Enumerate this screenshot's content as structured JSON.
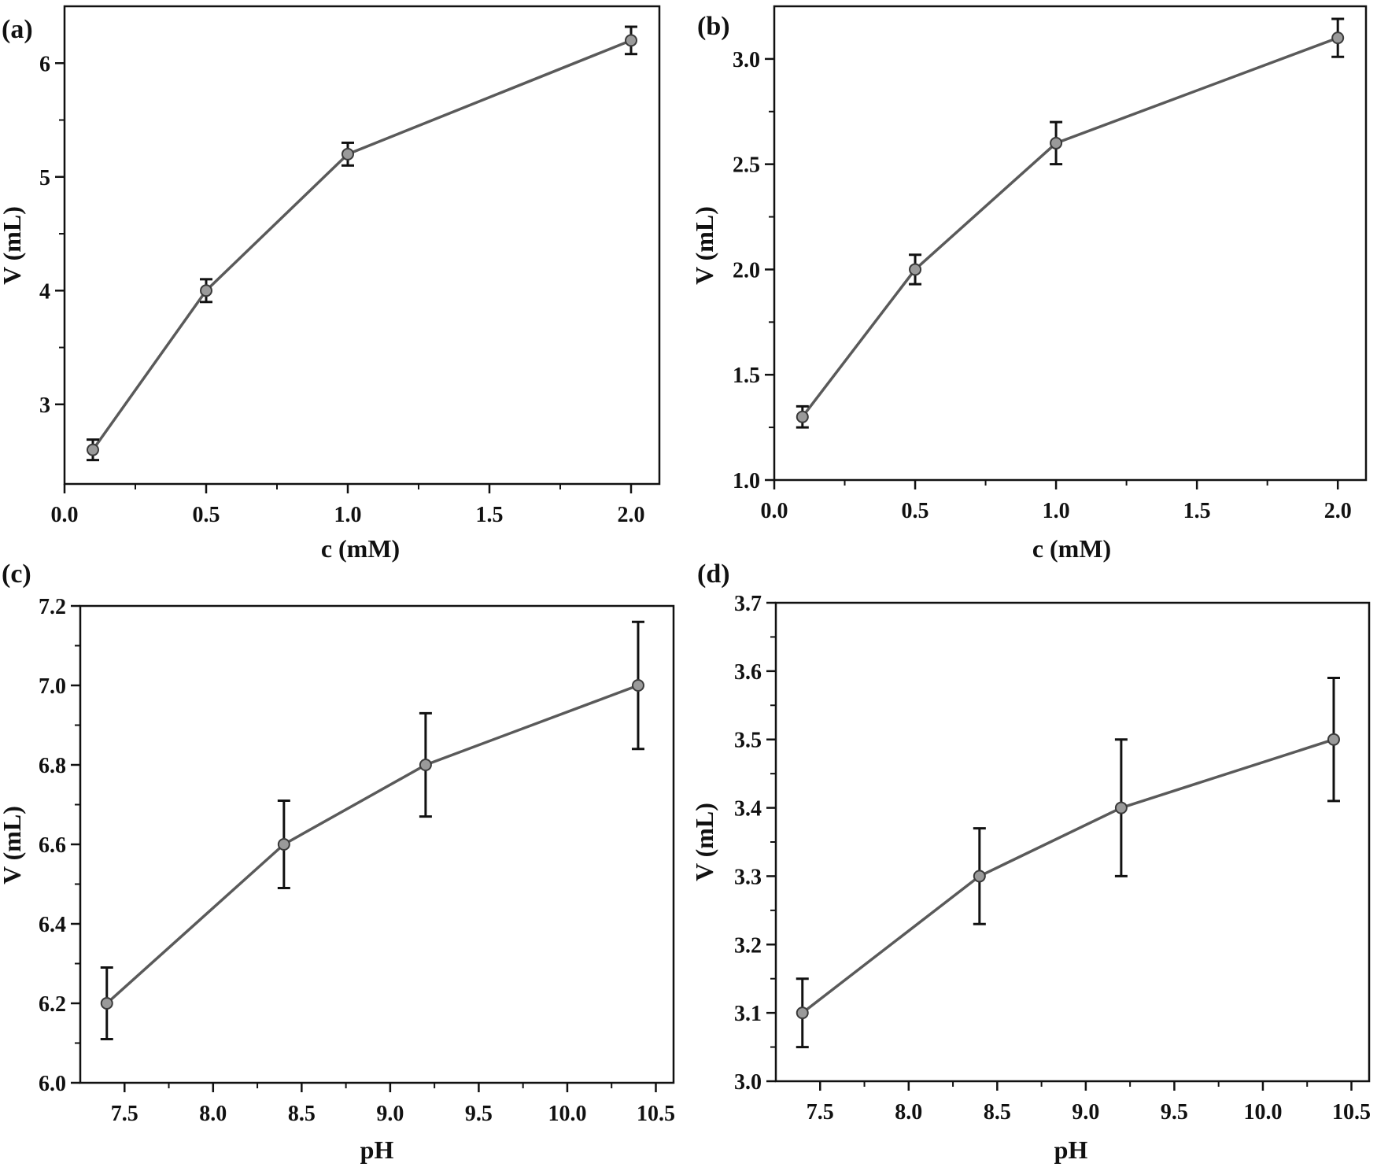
{
  "colors": {
    "line": "#5a5a5a",
    "marker_fill": "#9a9a9a",
    "marker_stroke": "#3a3a3a",
    "error_bar": "#111111",
    "axis": "#111111",
    "text": "#111111"
  },
  "chart_data": [
    {
      "panel_label": "(a)",
      "type": "line",
      "xlabel": "c (mM)",
      "ylabel": "V (mL)",
      "xlim": [
        0.0,
        2.1
      ],
      "ylim": [
        2.3,
        6.5
      ],
      "xticks": [
        0.0,
        0.5,
        1.0,
        1.5,
        2.0
      ],
      "xtick_labels": [
        "0.0",
        "0.5",
        "1.0",
        "1.5",
        "2.0"
      ],
      "yticks": [
        3,
        4,
        5,
        6
      ],
      "ytick_labels": [
        "3",
        "4",
        "5",
        "6"
      ],
      "x": [
        0.1,
        0.5,
        1.0,
        2.0
      ],
      "y": [
        2.6,
        4.0,
        5.2,
        6.2
      ],
      "error": [
        0.09,
        0.1,
        0.1,
        0.12
      ]
    },
    {
      "panel_label": "(b)",
      "type": "line",
      "xlabel": "c (mM)",
      "ylabel": "V (mL)",
      "xlim": [
        0.0,
        2.1
      ],
      "ylim": [
        1.0,
        3.25
      ],
      "xticks": [
        0.0,
        0.5,
        1.0,
        1.5,
        2.0
      ],
      "xtick_labels": [
        "0.0",
        "0.5",
        "1.0",
        "1.5",
        "2.0"
      ],
      "yticks": [
        1.0,
        1.5,
        2.0,
        2.5,
        3.0
      ],
      "ytick_labels": [
        "1.0",
        "1.5",
        "2.0",
        "2.5",
        "3.0"
      ],
      "x": [
        0.1,
        0.5,
        1.0,
        2.0
      ],
      "y": [
        1.3,
        2.0,
        2.6,
        3.1
      ],
      "error": [
        0.05,
        0.07,
        0.1,
        0.09
      ]
    },
    {
      "panel_label": "(c)",
      "type": "line",
      "xlabel": "pH",
      "ylabel": "V (mL)",
      "xlim": [
        7.25,
        10.6
      ],
      "ylim": [
        6.0,
        7.2
      ],
      "xticks": [
        7.5,
        8.0,
        8.5,
        9.0,
        9.5,
        10.0,
        10.5
      ],
      "xtick_labels": [
        "7.5",
        "8.0",
        "8.5",
        "9.0",
        "9.5",
        "10.0",
        "10.5"
      ],
      "yticks": [
        6.0,
        6.2,
        6.4,
        6.6,
        6.8,
        7.0,
        7.2
      ],
      "ytick_labels": [
        "6.0",
        "6.2",
        "6.4",
        "6.6",
        "6.8",
        "7.0",
        "7.2"
      ],
      "x": [
        7.4,
        8.4,
        9.2,
        10.4
      ],
      "y": [
        6.2,
        6.6,
        6.8,
        7.0
      ],
      "error": [
        0.09,
        0.11,
        0.13,
        0.16
      ]
    },
    {
      "panel_label": "(d)",
      "type": "line",
      "xlabel": "pH",
      "ylabel": "V (mL)",
      "xlim": [
        7.25,
        10.6
      ],
      "ylim": [
        3.0,
        3.7
      ],
      "xticks": [
        7.5,
        8.0,
        8.5,
        9.0,
        9.5,
        10.0,
        10.5
      ],
      "xtick_labels": [
        "7.5",
        "8.0",
        "8.5",
        "9.0",
        "9.5",
        "10.0",
        "10.5"
      ],
      "yticks": [
        3.0,
        3.1,
        3.2,
        3.3,
        3.4,
        3.5,
        3.6,
        3.7
      ],
      "ytick_labels": [
        "3.0",
        "3.1",
        "3.2",
        "3.3",
        "3.4",
        "3.5",
        "3.6",
        "3.7"
      ],
      "x": [
        7.4,
        8.4,
        9.2,
        10.4
      ],
      "y": [
        3.1,
        3.3,
        3.4,
        3.5
      ],
      "error": [
        0.05,
        0.07,
        0.1,
        0.09
      ]
    }
  ]
}
